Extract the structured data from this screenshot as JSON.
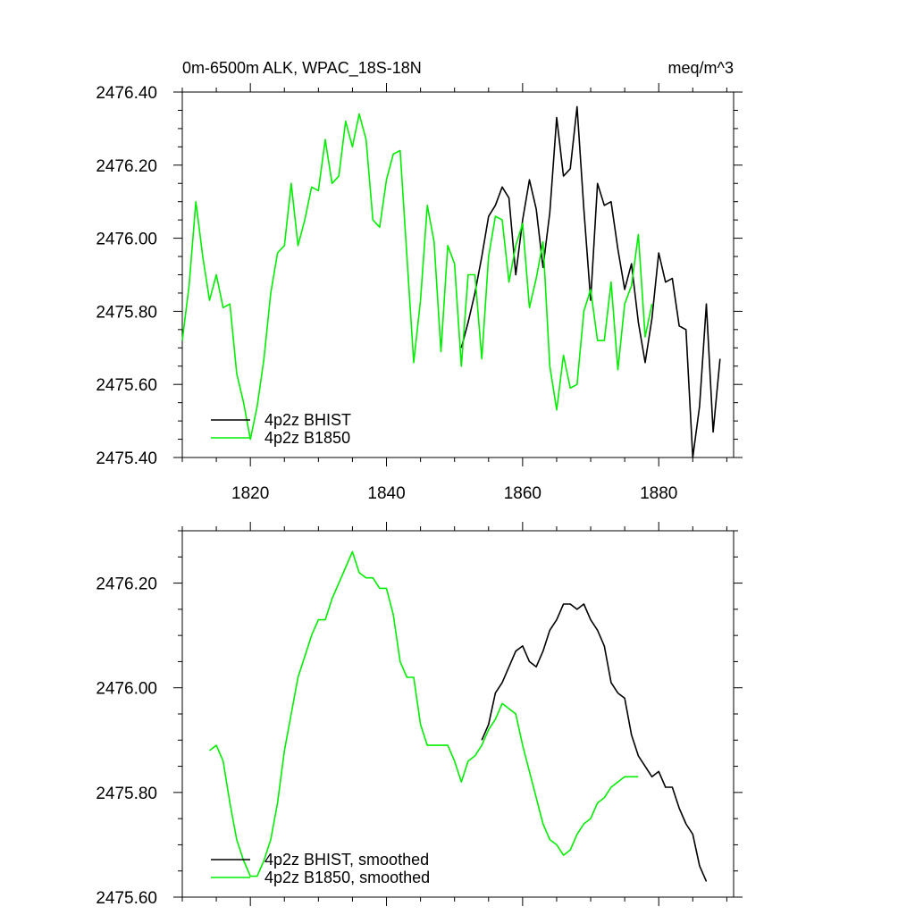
{
  "chart_data": [
    {
      "type": "line",
      "title": "0m-6500m ALK, WPAC_18S-18N",
      "units": "meq/m^3",
      "xlim": [
        1810,
        1891
      ],
      "ylim": [
        2475.4,
        2476.4
      ],
      "xticks": [
        1820,
        1840,
        1860,
        1880
      ],
      "xtick_labels": [
        "1820",
        "1840",
        "1860",
        "1880"
      ],
      "yticks": [
        2475.4,
        2475.6,
        2475.8,
        2476.0,
        2476.2,
        2476.4
      ],
      "ytick_labels": [
        "2475.40",
        "2475.60",
        "2475.80",
        "2476.00",
        "2476.20",
        "2476.40"
      ],
      "grid": false,
      "legend_position": "bottom-left",
      "series": [
        {
          "name": "4p2z BHIST",
          "color": "#000000",
          "x": [
            1851,
            1852,
            1853,
            1854,
            1855,
            1856,
            1857,
            1858,
            1859,
            1860,
            1861,
            1862,
            1863,
            1864,
            1865,
            1866,
            1867,
            1868,
            1869,
            1870,
            1871,
            1872,
            1873,
            1874,
            1875,
            1876,
            1877,
            1878,
            1879,
            1880,
            1881,
            1882,
            1883,
            1884,
            1885,
            1886,
            1887,
            1888,
            1889
          ],
          "y": [
            2475.7,
            2475.77,
            2475.85,
            2475.95,
            2476.06,
            2476.09,
            2476.14,
            2476.11,
            2475.9,
            2476.05,
            2476.16,
            2476.08,
            2475.92,
            2476.07,
            2476.33,
            2476.17,
            2476.19,
            2476.36,
            2476.08,
            2475.83,
            2476.15,
            2476.09,
            2476.1,
            2475.97,
            2475.86,
            2475.93,
            2475.77,
            2475.66,
            2475.78,
            2475.96,
            2475.88,
            2475.89,
            2475.76,
            2475.75,
            2475.4,
            2475.54,
            2475.82,
            2475.47,
            2475.67
          ]
        },
        {
          "name": "4p2z B1850",
          "color": "#00ee00",
          "x": [
            1810,
            1811,
            1812,
            1813,
            1814,
            1815,
            1816,
            1817,
            1818,
            1819,
            1820,
            1821,
            1822,
            1823,
            1824,
            1825,
            1826,
            1827,
            1828,
            1829,
            1830,
            1831,
            1832,
            1833,
            1834,
            1835,
            1836,
            1837,
            1838,
            1839,
            1840,
            1841,
            1842,
            1843,
            1844,
            1845,
            1846,
            1847,
            1848,
            1849,
            1850,
            1851,
            1852,
            1853,
            1854,
            1855,
            1856,
            1857,
            1858,
            1859,
            1860,
            1861,
            1862,
            1863,
            1864,
            1865,
            1866,
            1867,
            1868,
            1869,
            1870,
            1871,
            1872,
            1873,
            1874,
            1875,
            1876,
            1877,
            1878,
            1879
          ],
          "y": [
            2475.72,
            2475.87,
            2476.1,
            2475.95,
            2475.83,
            2475.9,
            2475.81,
            2475.82,
            2475.63,
            2475.55,
            2475.45,
            2475.54,
            2475.67,
            2475.85,
            2475.96,
            2475.98,
            2476.15,
            2475.98,
            2476.05,
            2476.14,
            2476.13,
            2476.27,
            2476.15,
            2476.17,
            2476.32,
            2476.25,
            2476.34,
            2476.27,
            2476.05,
            2476.03,
            2476.16,
            2476.23,
            2476.24,
            2475.95,
            2475.66,
            2475.83,
            2476.09,
            2475.99,
            2475.69,
            2475.98,
            2475.93,
            2475.65,
            2475.9,
            2475.9,
            2475.67,
            2475.95,
            2476.06,
            2476.05,
            2475.88,
            2475.98,
            2476.04,
            2475.81,
            2475.89,
            2475.99,
            2475.65,
            2475.53,
            2475.68,
            2475.59,
            2475.6,
            2475.8,
            2475.86,
            2475.72,
            2475.72,
            2475.88,
            2475.64,
            2475.82,
            2475.87,
            2476.01,
            2475.73,
            2475.82
          ]
        }
      ]
    },
    {
      "type": "line",
      "title": "",
      "xlim": [
        1810,
        1891
      ],
      "ylim": [
        2475.6,
        2476.3
      ],
      "xticks": [
        1820,
        1840,
        1860,
        1880
      ],
      "yticks": [
        2475.6,
        2475.8,
        2476.0,
        2476.2
      ],
      "ytick_labels": [
        "2475.60",
        "2475.80",
        "2476.00",
        "2476.20"
      ],
      "grid": false,
      "legend_position": "bottom-left",
      "series": [
        {
          "name": "4p2z BHIST, smoothed",
          "color": "#000000",
          "x": [
            1854,
            1855,
            1856,
            1857,
            1858,
            1859,
            1860,
            1861,
            1862,
            1863,
            1864,
            1865,
            1866,
            1867,
            1868,
            1869,
            1870,
            1871,
            1872,
            1873,
            1874,
            1875,
            1876,
            1877,
            1878,
            1879,
            1880,
            1881,
            1882,
            1883,
            1884,
            1885,
            1886,
            1887
          ],
          "y": [
            2475.9,
            2475.93,
            2475.99,
            2476.01,
            2476.04,
            2476.07,
            2476.08,
            2476.05,
            2476.04,
            2476.07,
            2476.11,
            2476.13,
            2476.16,
            2476.16,
            2476.15,
            2476.16,
            2476.13,
            2476.11,
            2476.08,
            2476.01,
            2475.99,
            2475.98,
            2475.91,
            2475.87,
            2475.85,
            2475.83,
            2475.84,
            2475.81,
            2475.81,
            2475.77,
            2475.74,
            2475.72,
            2475.66,
            2475.63
          ]
        },
        {
          "name": "4p2z B1850, smoothed",
          "color": "#00ee00",
          "x": [
            1814,
            1815,
            1816,
            1817,
            1818,
            1819,
            1820,
            1821,
            1822,
            1823,
            1824,
            1825,
            1826,
            1827,
            1828,
            1829,
            1830,
            1831,
            1832,
            1833,
            1834,
            1835,
            1836,
            1837,
            1838,
            1839,
            1840,
            1841,
            1842,
            1843,
            1844,
            1845,
            1846,
            1847,
            1848,
            1849,
            1850,
            1851,
            1852,
            1853,
            1854,
            1855,
            1856,
            1857,
            1858,
            1859,
            1860,
            1861,
            1862,
            1863,
            1864,
            1865,
            1866,
            1867,
            1868,
            1869,
            1870,
            1871,
            1872,
            1873,
            1874,
            1875,
            1876,
            1877
          ],
          "y": [
            2475.88,
            2475.89,
            2475.86,
            2475.78,
            2475.71,
            2475.67,
            2475.64,
            2475.64,
            2475.67,
            2475.71,
            2475.78,
            2475.88,
            2475.95,
            2476.02,
            2476.06,
            2476.1,
            2476.13,
            2476.13,
            2476.17,
            2476.2,
            2476.23,
            2476.26,
            2476.22,
            2476.21,
            2476.21,
            2476.19,
            2476.19,
            2476.14,
            2476.05,
            2476.02,
            2476.02,
            2475.93,
            2475.89,
            2475.89,
            2475.89,
            2475.89,
            2475.86,
            2475.82,
            2475.86,
            2475.87,
            2475.89,
            2475.92,
            2475.94,
            2475.97,
            2475.96,
            2475.95,
            2475.89,
            2475.84,
            2475.79,
            2475.74,
            2475.71,
            2475.7,
            2475.68,
            2475.69,
            2475.72,
            2475.74,
            2475.75,
            2475.78,
            2475.79,
            2475.81,
            2475.82,
            2475.83,
            2475.83,
            2475.83
          ]
        }
      ]
    }
  ]
}
